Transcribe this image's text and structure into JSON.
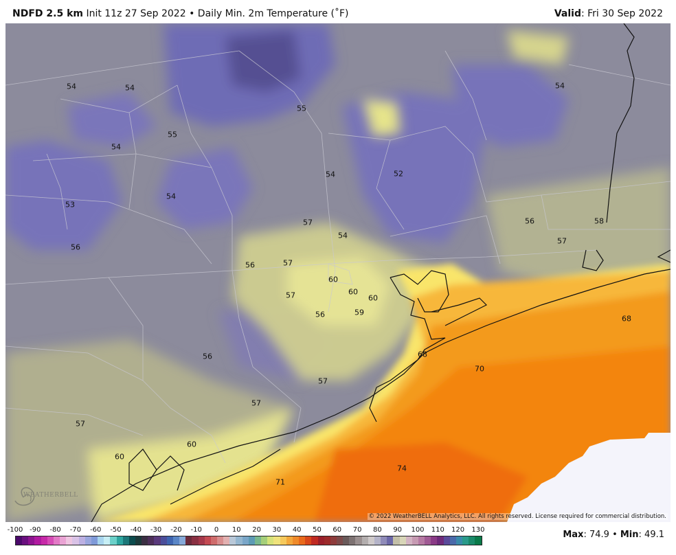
{
  "header": {
    "model": "NDFD 2.5 km",
    "init": "Init 11z 27 Sep 2022",
    "separator": "•",
    "product": "Daily Min. 2m Temperature (˚F)",
    "valid_label": "Valid",
    "valid_value": ": Fri 30 Sep 2022"
  },
  "map_labels": [
    {
      "text": "54"
    },
    {
      "text": "54"
    },
    {
      "text": "55"
    },
    {
      "text": "54"
    },
    {
      "text": "55"
    },
    {
      "text": "54"
    },
    {
      "text": "54"
    },
    {
      "text": "52"
    },
    {
      "text": "53"
    },
    {
      "text": "54"
    },
    {
      "text": "56"
    },
    {
      "text": "57"
    },
    {
      "text": "56"
    },
    {
      "text": "58"
    },
    {
      "text": "57"
    },
    {
      "text": "54"
    },
    {
      "text": "56"
    },
    {
      "text": "57"
    },
    {
      "text": "60"
    },
    {
      "text": "60"
    },
    {
      "text": "60"
    },
    {
      "text": "57"
    },
    {
      "text": "56"
    },
    {
      "text": "59"
    },
    {
      "text": "68"
    },
    {
      "text": "56"
    },
    {
      "text": "68"
    },
    {
      "text": "70"
    },
    {
      "text": "57"
    },
    {
      "text": "57"
    },
    {
      "text": "57"
    },
    {
      "text": "60"
    },
    {
      "text": "60"
    },
    {
      "text": "74"
    },
    {
      "text": "71"
    }
  ],
  "copyright": "© 2022 WeatherBELL Analytics, LLC. All rights reserved. License required for commercial distribution.",
  "logo_text": "WEATHERBELL",
  "scale": {
    "ticks": [
      "-100",
      "-90",
      "-80",
      "-70",
      "-60",
      "-50",
      "-40",
      "-30",
      "-20",
      "-10",
      "0",
      "10",
      "20",
      "30",
      "40",
      "50",
      "60",
      "70",
      "80",
      "90",
      "100",
      "110",
      "120",
      "130"
    ]
  },
  "stats": {
    "max_label": "Max",
    "max_value": ": 74.9",
    "sep": "•",
    "min_label": "Min",
    "min_value": ": 49.1"
  },
  "colors": {
    "cold": "#7a76b8",
    "neutral": "#8c8b9c",
    "yellow": "#e6e48a",
    "orange": "#f39a1a",
    "deep_orange": "#f07208",
    "missing": "#f4f4fb"
  }
}
